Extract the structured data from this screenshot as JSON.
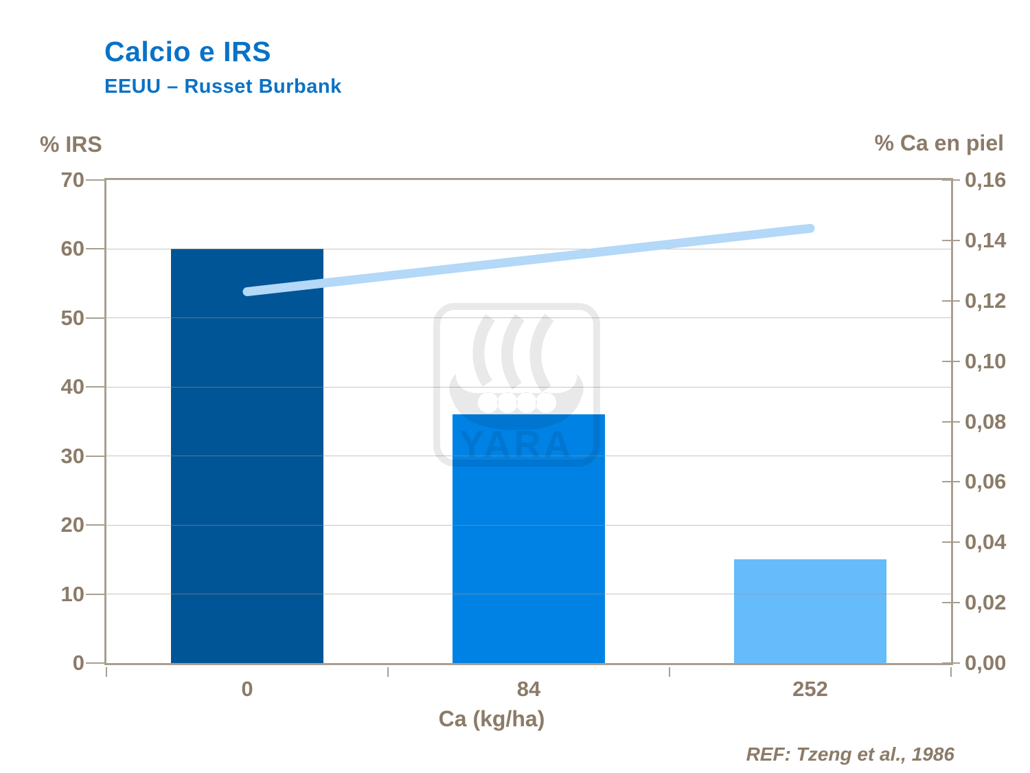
{
  "header": {
    "title": "Calcio e IRS",
    "subtitle": "EEUU – Russet Burbank"
  },
  "axes": {
    "left_title": "% IRS",
    "right_title": "% Ca en piel",
    "x_title": "Ca (kg/ha)",
    "left_tick_labels": [
      "70",
      "60",
      "50",
      "40",
      "30",
      "20",
      "10",
      "0"
    ],
    "right_tick_labels": [
      "0,16",
      "0,14",
      "0,12",
      "0,10",
      "0,08",
      "0,06",
      "0,04",
      "0,02",
      "0,00"
    ],
    "x_tick_labels": [
      "0",
      "84",
      "252"
    ]
  },
  "footer": {
    "reference": "REF: Tzeng et al., 1986"
  },
  "watermark": {
    "text": "YARA"
  },
  "colors": {
    "title_blue": "#0A72C6",
    "axis_text": "#8B7B68",
    "plot_border": "#A89E90",
    "gridline": "#CCC3B7",
    "bar_colors": [
      "#005596",
      "#0082E4",
      "#66BBFA"
    ],
    "line_color": "#B3D8F8"
  },
  "chart_data": {
    "type": "bar",
    "subtype": "combo-bar-line",
    "title": "Calcio e IRS",
    "subtitle": "EEUU – Russet Burbank",
    "categories": [
      "0",
      "84",
      "252"
    ],
    "series": [
      {
        "name": "% IRS",
        "type": "bar",
        "axis": "left",
        "values": [
          60,
          36,
          15
        ]
      },
      {
        "name": "% Ca en piel",
        "type": "line",
        "axis": "right",
        "values": [
          0.123,
          0.1335,
          0.144
        ]
      }
    ],
    "xlabel": "Ca (kg/ha)",
    "ylabel_left": "% IRS",
    "ylabel_right": "% Ca en piel",
    "ylim_left": [
      0,
      70
    ],
    "ylim_right": [
      0,
      0.16
    ],
    "left_tick_step": 10,
    "right_tick_step": 0.02,
    "grid": true,
    "legend_position": "none",
    "annotation": "REF: Tzeng et al., 1986"
  }
}
